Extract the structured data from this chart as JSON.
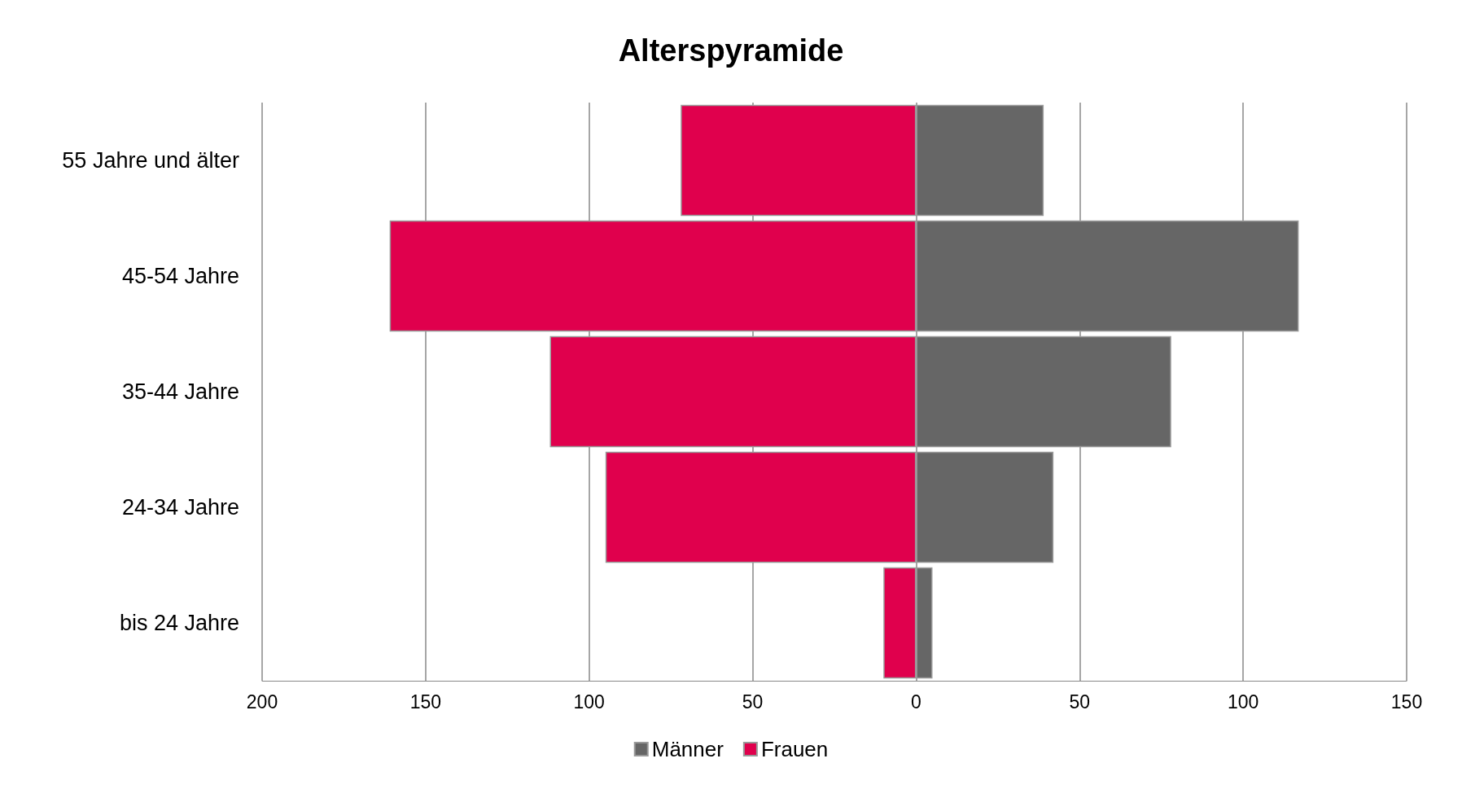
{
  "chart_data": {
    "type": "bar",
    "orientation": "horizontal",
    "title": "Alterspyramide",
    "categories": [
      "55 Jahre und älter",
      "45-54 Jahre",
      "35-44 Jahre",
      "24-34 Jahre",
      "bis 24 Jahre"
    ],
    "series": [
      {
        "name": "Männer",
        "color": "#666666",
        "values": [
          39,
          117,
          78,
          42,
          5
        ]
      },
      {
        "name": "Frauen",
        "color": "#e0004d",
        "values": [
          -72,
          -161,
          -112,
          -95,
          -10
        ]
      }
    ],
    "xlim": [
      -200,
      150
    ],
    "xticks": [
      {
        "value": -200,
        "label": "200"
      },
      {
        "value": -150,
        "label": "150"
      },
      {
        "value": -100,
        "label": "100"
      },
      {
        "value": -50,
        "label": "50"
      },
      {
        "value": 0,
        "label": "0"
      },
      {
        "value": 50,
        "label": "50"
      },
      {
        "value": 100,
        "label": "100"
      },
      {
        "value": 150,
        "label": "150"
      }
    ],
    "grid": "x",
    "legend": "bottom",
    "stacked": true
  }
}
